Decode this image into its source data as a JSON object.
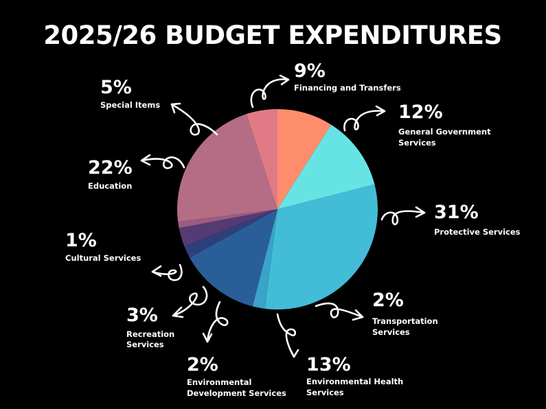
{
  "chart_data": {
    "type": "pie",
    "title": "2025/26 BUDGET EXPENDITURES",
    "slices": [
      {
        "label": "Financing and Transfers",
        "value": 9,
        "value_label": "9%",
        "color": "#fe8d6e"
      },
      {
        "label": "General Government Services",
        "value": 12,
        "value_label": "12%",
        "color": "#66e4e4"
      },
      {
        "label": "Protective Services",
        "value": 31,
        "value_label": "31%",
        "color": "#43bcd7"
      },
      {
        "label": "Transportation Services",
        "value": 2,
        "value_label": "2%",
        "color": "#3aa3c9"
      },
      {
        "label": "Environmental Health Services",
        "value": 13,
        "value_label": "13%",
        "color": "#2a5e98"
      },
      {
        "label": "Environmental Development Services",
        "value": 2,
        "value_label": "2%",
        "color": "#2f3f7a"
      },
      {
        "label": "Recreation Services",
        "value": 3,
        "value_label": "3%",
        "color": "#553a73"
      },
      {
        "label": "Cultural Services",
        "value": 1,
        "value_label": "1%",
        "color": "#9b5c82"
      },
      {
        "label": "Education",
        "value": 22,
        "value_label": "22%",
        "color": "#b56d85"
      },
      {
        "label": "Special Items",
        "value": 5,
        "value_label": "5%",
        "color": "#e07b85"
      }
    ]
  }
}
